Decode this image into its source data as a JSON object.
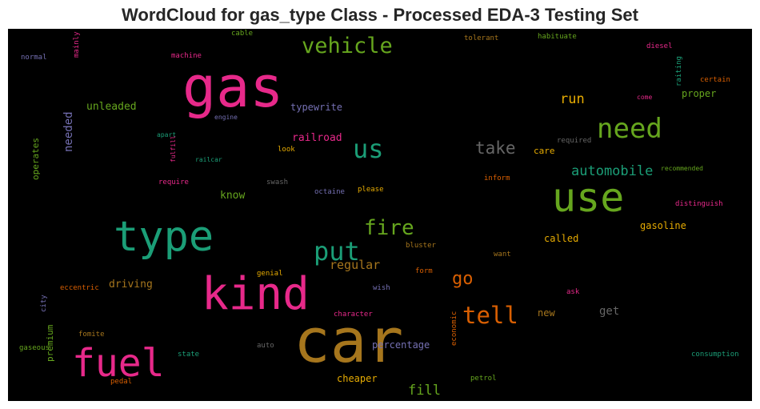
{
  "title": "WordCloud for gas_type Class - Processed EDA-3 Testing Set",
  "words": [
    {
      "text": "gas",
      "color": "#e7298a"
    },
    {
      "text": "car",
      "color": "#a6761d"
    },
    {
      "text": "kind",
      "color": "#e7298a"
    },
    {
      "text": "type",
      "color": "#1b9e77"
    },
    {
      "text": "use",
      "color": "#66a61e"
    },
    {
      "text": "fuel",
      "color": "#e7298a"
    },
    {
      "text": "need",
      "color": "#66a61e"
    },
    {
      "text": "vehicle",
      "color": "#66a61e"
    },
    {
      "text": "us",
      "color": "#1b9e77"
    },
    {
      "text": "put",
      "color": "#1b9e77"
    },
    {
      "text": "tell",
      "color": "#d95f02"
    },
    {
      "text": "fire",
      "color": "#66a61e"
    },
    {
      "text": "take",
      "color": "#666666"
    },
    {
      "text": "go",
      "color": "#d95f02"
    },
    {
      "text": "automobile",
      "color": "#1b9e77"
    },
    {
      "text": "run",
      "color": "#e6ab02"
    },
    {
      "text": "regular",
      "color": "#a6761d"
    },
    {
      "text": "fill",
      "color": "#66a61e"
    },
    {
      "text": "unleaded",
      "color": "#66a61e"
    },
    {
      "text": "needed",
      "color": "#7570b3"
    },
    {
      "text": "typewrite",
      "color": "#7570b3"
    },
    {
      "text": "railroad",
      "color": "#e7298a"
    },
    {
      "text": "know",
      "color": "#66a61e"
    },
    {
      "text": "driving",
      "color": "#a6761d"
    },
    {
      "text": "cheaper",
      "color": "#e6ab02"
    },
    {
      "text": "percentage",
      "color": "#7570b3"
    },
    {
      "text": "called",
      "color": "#e6ab02"
    },
    {
      "text": "gasoline",
      "color": "#e6ab02"
    },
    {
      "text": "get",
      "color": "#666666"
    },
    {
      "text": "new",
      "color": "#a6761d"
    },
    {
      "text": "care",
      "color": "#e6ab02"
    },
    {
      "text": "proper",
      "color": "#66a61e"
    },
    {
      "text": "operates",
      "color": "#66a61e"
    },
    {
      "text": "premium",
      "color": "#66a61e"
    },
    {
      "text": "cable",
      "color": "#66a61e"
    },
    {
      "text": "machine",
      "color": "#e7298a"
    },
    {
      "text": "tolerant",
      "color": "#a6761d"
    },
    {
      "text": "habituate",
      "color": "#66a61e"
    },
    {
      "text": "diesel",
      "color": "#e7298a"
    },
    {
      "text": "mainly",
      "color": "#e7298a"
    },
    {
      "text": "normal",
      "color": "#7570b3"
    },
    {
      "text": "raiting",
      "color": "#1b9e77"
    },
    {
      "text": "certain",
      "color": "#d95f02"
    },
    {
      "text": "come",
      "color": "#e7298a"
    },
    {
      "text": "engine",
      "color": "#7570b3"
    },
    {
      "text": "apart",
      "color": "#1b9e77"
    },
    {
      "text": "fulfill",
      "color": "#e7298a"
    },
    {
      "text": "railcar",
      "color": "#1b9e77"
    },
    {
      "text": "look",
      "color": "#e6ab02"
    },
    {
      "text": "required",
      "color": "#666666"
    },
    {
      "text": "recommended",
      "color": "#66a61e"
    },
    {
      "text": "require",
      "color": "#e7298a"
    },
    {
      "text": "swash",
      "color": "#666666"
    },
    {
      "text": "octaine",
      "color": "#7570b3"
    },
    {
      "text": "please",
      "color": "#e6ab02"
    },
    {
      "text": "inform",
      "color": "#d95f02"
    },
    {
      "text": "distinguish",
      "color": "#e7298a"
    },
    {
      "text": "bluster",
      "color": "#a6761d"
    },
    {
      "text": "want",
      "color": "#a6761d"
    },
    {
      "text": "genial",
      "color": "#e6ab02"
    },
    {
      "text": "form",
      "color": "#d95f02"
    },
    {
      "text": "eccentric",
      "color": "#d95f02"
    },
    {
      "text": "wish",
      "color": "#7570b3"
    },
    {
      "text": "ask",
      "color": "#e7298a"
    },
    {
      "text": "city",
      "color": "#7570b3"
    },
    {
      "text": "character",
      "color": "#e7298a"
    },
    {
      "text": "economic",
      "color": "#d95f02"
    },
    {
      "text": "fomite",
      "color": "#a6761d"
    },
    {
      "text": "gaseous",
      "color": "#66a61e"
    },
    {
      "text": "state",
      "color": "#1b9e77"
    },
    {
      "text": "auto",
      "color": "#666666"
    },
    {
      "text": "consumption",
      "color": "#1b9e77"
    },
    {
      "text": "pedal",
      "color": "#d95f02"
    },
    {
      "text": "petrol",
      "color": "#66a61e"
    }
  ]
}
